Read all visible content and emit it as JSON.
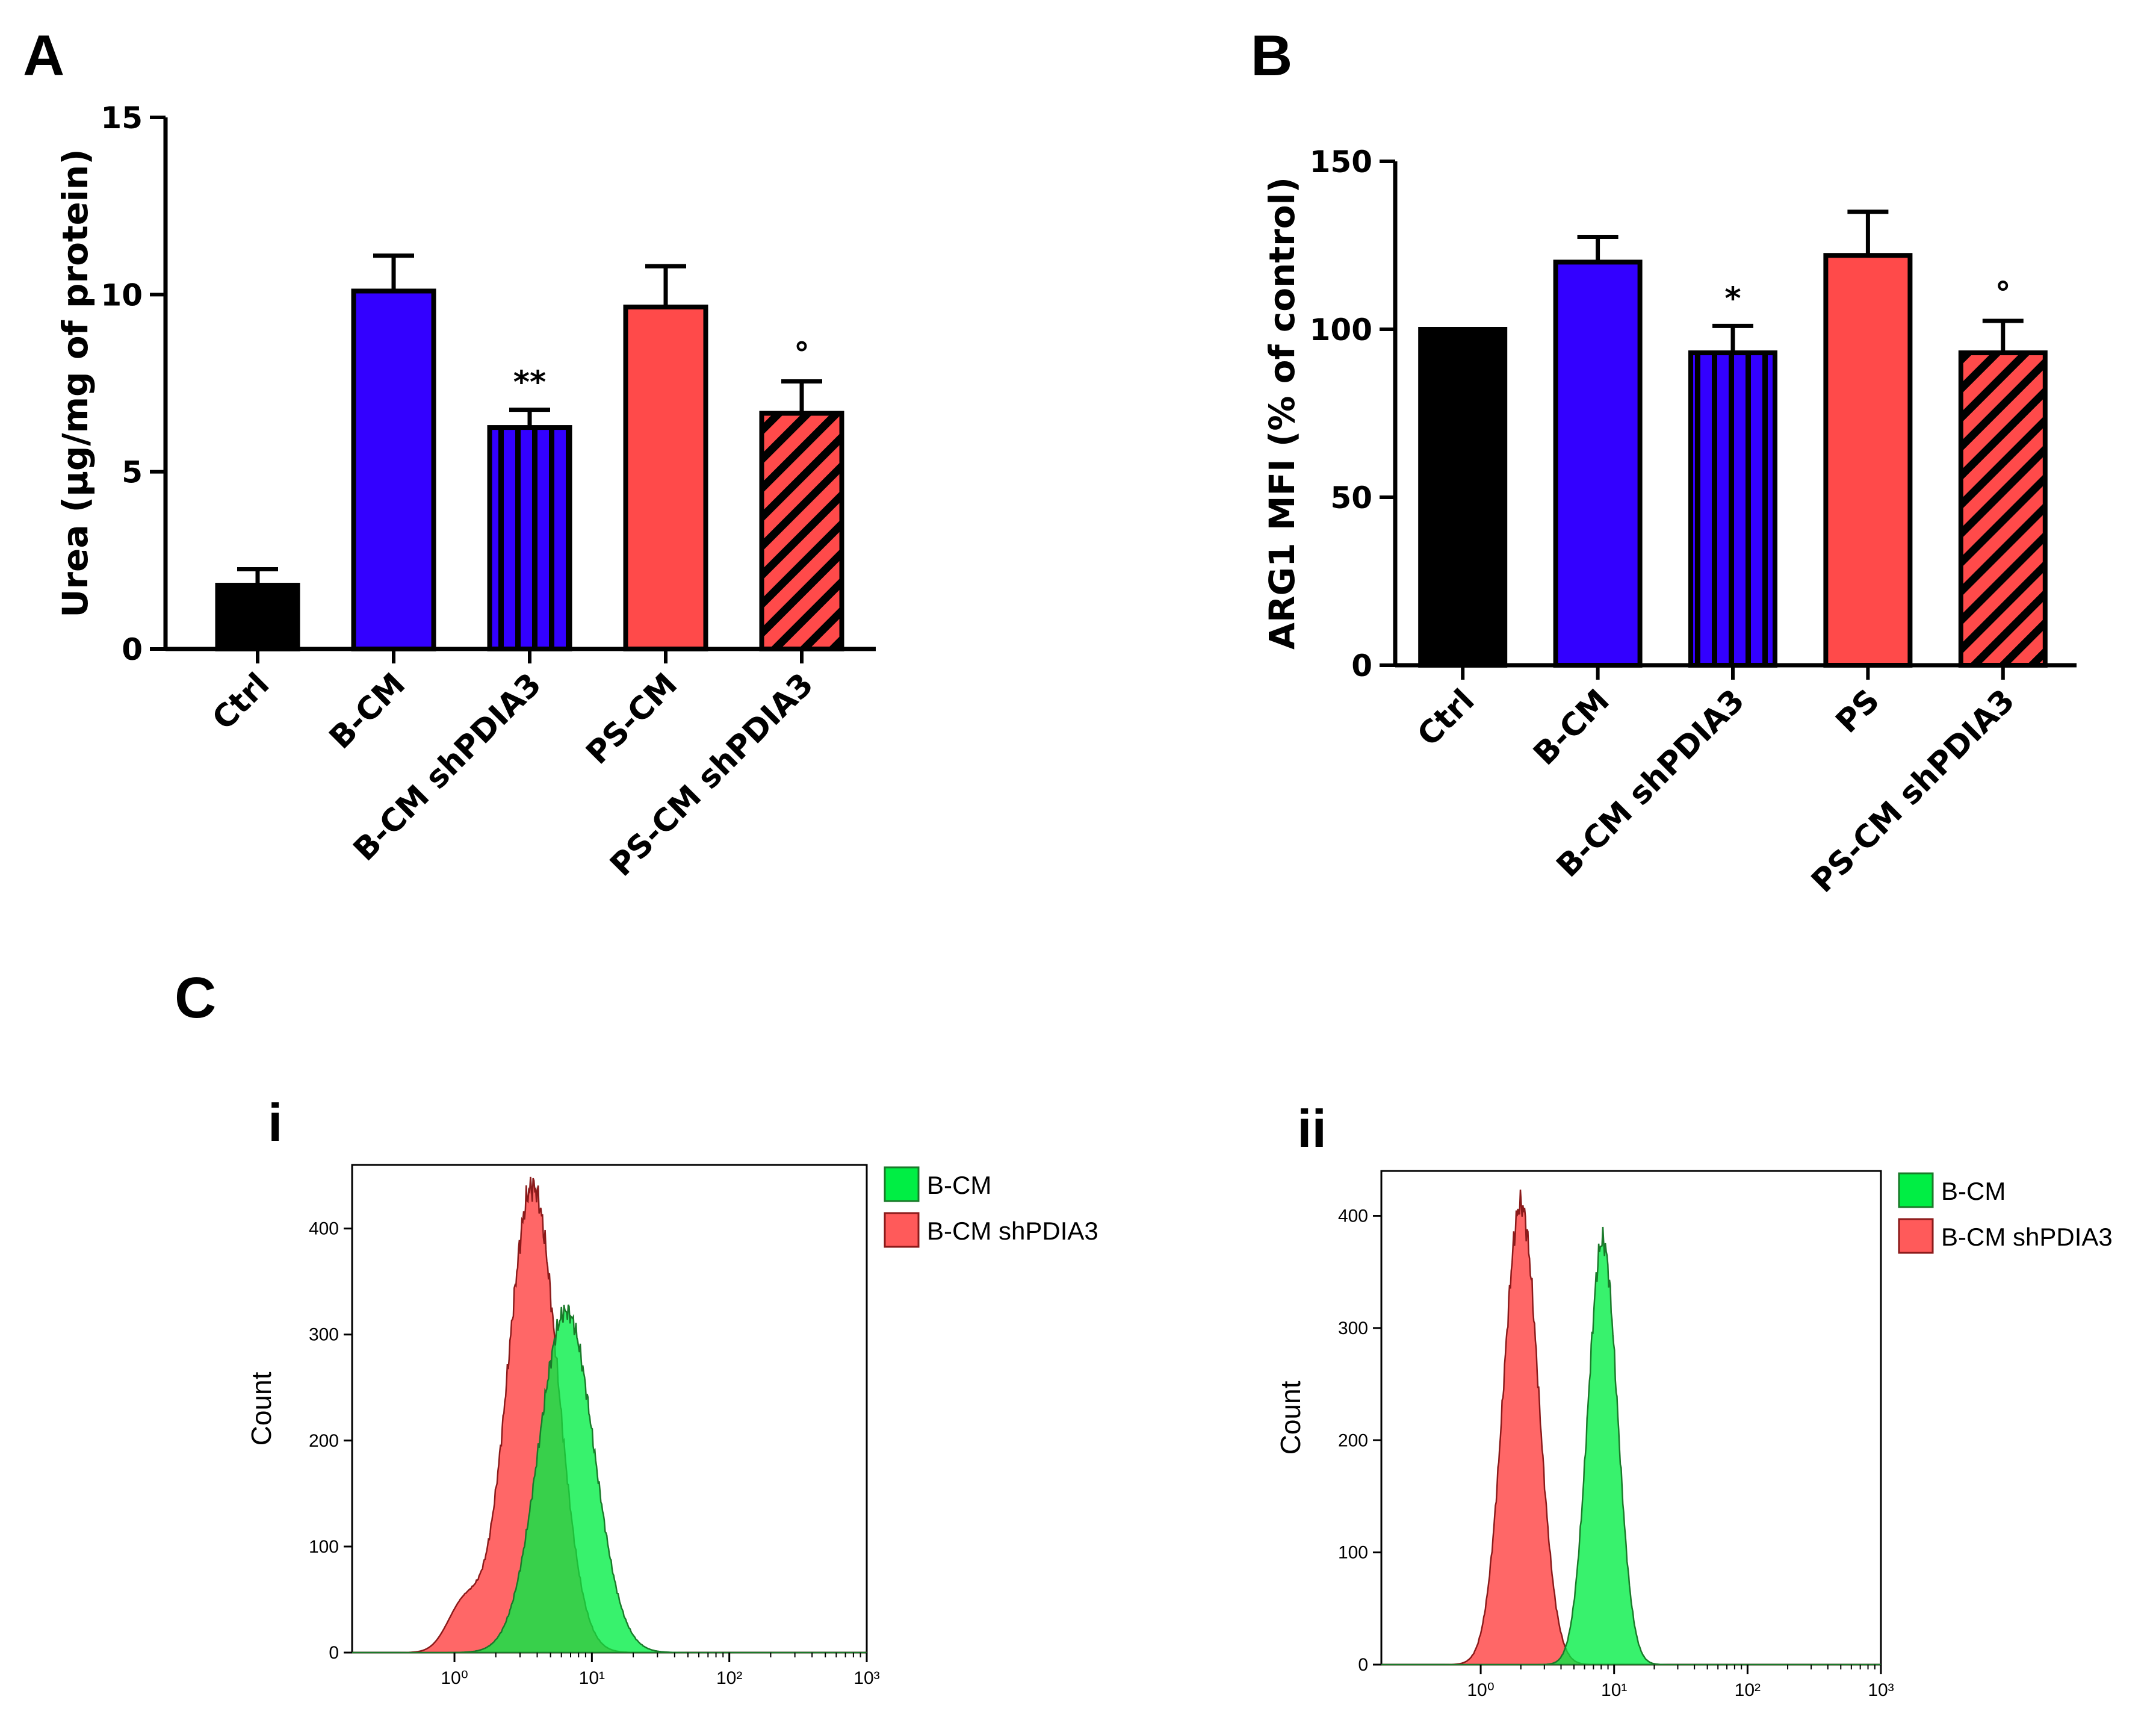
{
  "panels": {
    "a": "A",
    "b": "B",
    "c": "C"
  },
  "chart_data": [
    {
      "type": "bar",
      "panel": "A",
      "ylabel": "Urea (µg/mg of protein)",
      "ylim": [
        0,
        15
      ],
      "yticks": [
        0,
        5,
        10,
        15
      ],
      "categories": [
        "Ctrl",
        "B-CM",
        "B-CM shPDIA3",
        "PS-CM",
        "PS-CM shPDIA3"
      ],
      "values": [
        1.8,
        10.1,
        6.25,
        9.65,
        6.65
      ],
      "errors": [
        0.45,
        1.0,
        0.5,
        1.15,
        0.9
      ],
      "fills": [
        "#000000",
        "#3300ff",
        "#3300ff",
        "#ff4a4a",
        "#ff4a4a"
      ],
      "patterns": [
        "solid",
        "solid",
        "vertical-stripes",
        "solid",
        "diagonal-stripes"
      ],
      "significance": [
        "",
        "",
        "**",
        "",
        "°"
      ]
    },
    {
      "type": "bar",
      "panel": "B",
      "ylabel": "ARG1 MFI (% of control)",
      "ylim": [
        0,
        150
      ],
      "yticks": [
        0,
        50,
        100,
        150
      ],
      "categories": [
        "Ctrl",
        "B-CM",
        "B-CM shPDIA3",
        "PS",
        "PS-CM shPDIA3"
      ],
      "values": [
        100,
        120,
        93,
        122,
        93
      ],
      "errors": [
        0,
        7.5,
        8,
        13,
        9.5
      ],
      "fills": [
        "#000000",
        "#3300ff",
        "#3300ff",
        "#ff4a4a",
        "#ff4a4a"
      ],
      "patterns": [
        "solid",
        "solid",
        "vertical-stripes",
        "solid",
        "diagonal-stripes"
      ],
      "significance": [
        "",
        "",
        "*",
        "",
        "°"
      ]
    },
    {
      "type": "area",
      "panel": "C-i",
      "sublabel": "i",
      "ylabel": "Count",
      "ylim": [
        0,
        460
      ],
      "yticks": [
        0,
        100,
        200,
        300,
        400
      ],
      "xscale": "log",
      "xlim": [
        0.18,
        1000
      ],
      "xticks": [
        "10⁰",
        "10¹",
        "10²",
        "10³"
      ],
      "series": [
        {
          "name": "B-CM",
          "color": "#00ee44",
          "peak_x": 6.5,
          "peak_count": 322,
          "width_decades": 0.2
        },
        {
          "name": "B-CM shPDIA3",
          "color": "#ff5a5a",
          "peak_x": 3.7,
          "peak_count": 440,
          "width_decades": 0.18
        }
      ]
    },
    {
      "type": "area",
      "panel": "C-ii",
      "sublabel": "ii",
      "ylabel": "Count",
      "ylim": [
        0,
        440
      ],
      "yticks": [
        0,
        100,
        200,
        300,
        400
      ],
      "xscale": "log",
      "xlim": [
        0.18,
        1000
      ],
      "xticks": [
        "10⁰",
        "10¹",
        "10²",
        "10³"
      ],
      "series": [
        {
          "name": "B-CM",
          "color": "#00ee44",
          "peak_x": 8.2,
          "peak_count": 378,
          "width_decades": 0.11
        },
        {
          "name": "B-CM shPDIA3",
          "color": "#ff5a5a",
          "peak_x": 2.0,
          "peak_count": 410,
          "width_decades": 0.13
        }
      ]
    }
  ]
}
